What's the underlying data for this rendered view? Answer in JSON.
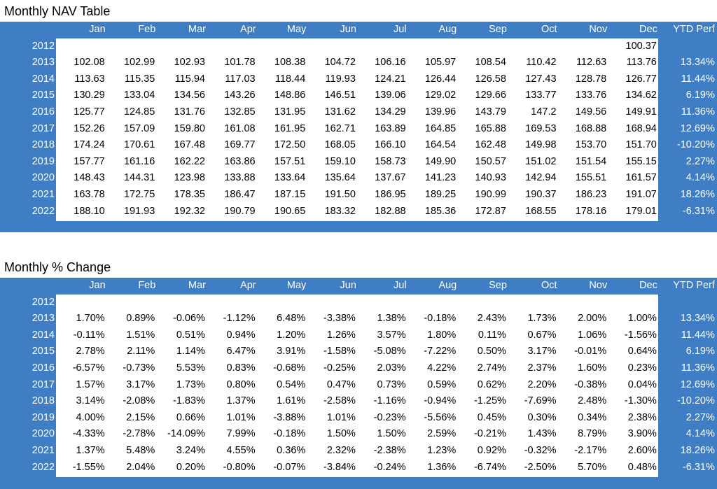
{
  "nav": {
    "title": "Monthly NAV Table",
    "headers": [
      "",
      "Jan",
      "Feb",
      "Mar",
      "Apr",
      "May",
      "Jun",
      "Jul",
      "Aug",
      "Sep",
      "Oct",
      "Nov",
      "Dec",
      "YTD Perf"
    ],
    "rows": [
      {
        "year": "2012",
        "values": [
          "",
          "",
          "",
          "",
          "",
          "",
          "",
          "",
          "",
          "",
          "",
          "100.37"
        ],
        "ytd": ""
      },
      {
        "year": "2013",
        "values": [
          "102.08",
          "102.99",
          "102.93",
          "101.78",
          "108.38",
          "104.72",
          "106.16",
          "105.97",
          "108.54",
          "110.42",
          "112.63",
          "113.76"
        ],
        "ytd": "13.34%"
      },
      {
        "year": "2014",
        "values": [
          "113.63",
          "115.35",
          "115.94",
          "117.03",
          "118.44",
          "119.93",
          "124.21",
          "126.44",
          "126.58",
          "127.43",
          "128.78",
          "126.77"
        ],
        "ytd": "11.44%"
      },
      {
        "year": "2015",
        "values": [
          "130.29",
          "133.04",
          "134.56",
          "143.26",
          "148.86",
          "146.51",
          "139.06",
          "129.02",
          "129.66",
          "133.77",
          "133.76",
          "134.62"
        ],
        "ytd": "6.19%"
      },
      {
        "year": "2016",
        "values": [
          "125.77",
          "124.85",
          "131.76",
          "132.85",
          "131.95",
          "131.62",
          "134.29",
          "139.96",
          "143.79",
          "147.2",
          "149.56",
          "149.91"
        ],
        "ytd": "11.36%"
      },
      {
        "year": "2017",
        "values": [
          "152.26",
          "157.09",
          "159.80",
          "161.08",
          "161.95",
          "162.71",
          "163.89",
          "164.85",
          "165.88",
          "169.53",
          "168.88",
          "168.94"
        ],
        "ytd": "12.69%"
      },
      {
        "year": "2018",
        "values": [
          "174.24",
          "170.61",
          "167.48",
          "169.77",
          "172.50",
          "168.05",
          "166.10",
          "164.54",
          "162.48",
          "149.98",
          "153.70",
          "151.70"
        ],
        "ytd": "-10.20%"
      },
      {
        "year": "2019",
        "values": [
          "157.77",
          "161.16",
          "162.22",
          "163.86",
          "157.51",
          "159.10",
          "158.73",
          "149.90",
          "150.57",
          "151.02",
          "151.54",
          "155.15"
        ],
        "ytd": "2.27%"
      },
      {
        "year": "2020",
        "values": [
          "148.43",
          "144.31",
          "123.98",
          "133.88",
          "133.64",
          "135.64",
          "137.67",
          "141.23",
          "140.93",
          "142.94",
          "155.51",
          "161.57"
        ],
        "ytd": "4.14%"
      },
      {
        "year": "2021",
        "values": [
          "163.78",
          "172.75",
          "178.35",
          "186.47",
          "187.15",
          "191.50",
          "186.95",
          "189.25",
          "190.99",
          "190.37",
          "186.23",
          "191.07"
        ],
        "ytd": "18.26%"
      },
      {
        "year": "2022",
        "values": [
          "188.10",
          "191.93",
          "192.32",
          "190.79",
          "190.65",
          "183.32",
          "182.88",
          "185.36",
          "172.87",
          "168.55",
          "178.16",
          "179.01"
        ],
        "ytd": "-6.31%"
      }
    ]
  },
  "pct": {
    "title": "Monthly % Change",
    "headers": [
      "",
      "Jan",
      "Feb",
      "Mar",
      "Apr",
      "May",
      "Jun",
      "Jul",
      "Aug",
      "Sep",
      "Oct",
      "Nov",
      "Dec",
      "YTD Perf"
    ],
    "rows": [
      {
        "year": "2012",
        "values": [
          "",
          "",
          "",
          "",
          "",
          "",
          "",
          "",
          "",
          "",
          "",
          ""
        ],
        "ytd": ""
      },
      {
        "year": "2013",
        "values": [
          "1.70%",
          "0.89%",
          "-0.06%",
          "-1.12%",
          "6.48%",
          "-3.38%",
          "1.38%",
          "-0.18%",
          "2.43%",
          "1.73%",
          "2.00%",
          "1.00%"
        ],
        "ytd": "13.34%"
      },
      {
        "year": "2014",
        "values": [
          "-0.11%",
          "1.51%",
          "0.51%",
          "0.94%",
          "1.20%",
          "1.26%",
          "3.57%",
          "1.80%",
          "0.11%",
          "0.67%",
          "1.06%",
          "-1.56%"
        ],
        "ytd": "11.44%"
      },
      {
        "year": "2015",
        "values": [
          "2.78%",
          "2.11%",
          "1.14%",
          "6.47%",
          "3.91%",
          "-1.58%",
          "-5.08%",
          "-7.22%",
          "0.50%",
          "3.17%",
          "-0.01%",
          "0.64%"
        ],
        "ytd": "6.19%"
      },
      {
        "year": "2016",
        "values": [
          "-6.57%",
          "-0.73%",
          "5.53%",
          "0.83%",
          "-0.68%",
          "-0.25%",
          "2.03%",
          "4.22%",
          "2.74%",
          "2.37%",
          "1.60%",
          "0.23%"
        ],
        "ytd": "11.36%"
      },
      {
        "year": "2017",
        "values": [
          "1.57%",
          "3.17%",
          "1.73%",
          "0.80%",
          "0.54%",
          "0.47%",
          "0.73%",
          "0.59%",
          "0.62%",
          "2.20%",
          "-0.38%",
          "0.04%"
        ],
        "ytd": "12.69%"
      },
      {
        "year": "2018",
        "values": [
          "3.14%",
          "-2.08%",
          "-1.83%",
          "1.37%",
          "1.61%",
          "-2.58%",
          "-1.16%",
          "-0.94%",
          "-1.25%",
          "-7.69%",
          "2.48%",
          "-1.30%"
        ],
        "ytd": "-10.20%"
      },
      {
        "year": "2019",
        "values": [
          "4.00%",
          "2.15%",
          "0.66%",
          "1.01%",
          "-3.88%",
          "1.01%",
          "-0.23%",
          "-5.56%",
          "0.45%",
          "0.30%",
          "0.34%",
          "2.38%"
        ],
        "ytd": "2.27%"
      },
      {
        "year": "2020",
        "values": [
          "-4.33%",
          "-2.78%",
          "-14.09%",
          "7.99%",
          "-0.18%",
          "1.50%",
          "1.50%",
          "2.59%",
          "-0.21%",
          "1.43%",
          "8.79%",
          "3.90%"
        ],
        "ytd": "4.14%"
      },
      {
        "year": "2021",
        "values": [
          "1.37%",
          "5.48%",
          "3.24%",
          "4.55%",
          "0.36%",
          "2.32%",
          "-2.38%",
          "1.23%",
          "0.92%",
          "-0.32%",
          "-2.17%",
          "2.60%"
        ],
        "ytd": "18.26%"
      },
      {
        "year": "2022",
        "values": [
          "-1.55%",
          "2.04%",
          "0.20%",
          "-0.80%",
          "-0.07%",
          "-3.84%",
          "-0.24%",
          "1.36%",
          "-6.74%",
          "-2.50%",
          "5.70%",
          "0.48%"
        ],
        "ytd": "-6.31%"
      }
    ]
  }
}
